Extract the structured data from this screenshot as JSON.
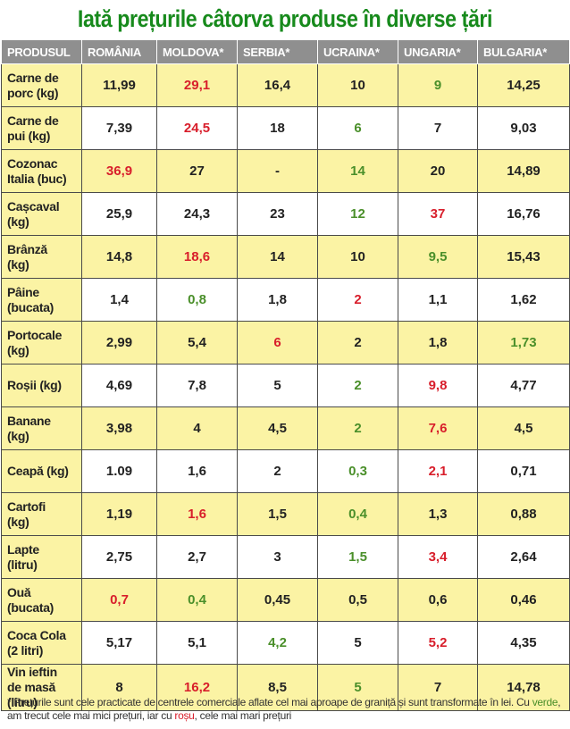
{
  "title": "Iată prețurile câtorva produse în diverse țări",
  "headers": [
    "PRODUSUL",
    "ROMÂNIA",
    "MOLDOVA*",
    "SERBIA*",
    "UCRAINA*",
    "UNGARIA*",
    "BULGARIA*"
  ],
  "rows": [
    {
      "product": [
        "Carne de",
        "porc (kg)"
      ],
      "values": [
        "11,99",
        "29,1",
        "16,4",
        "10",
        "9",
        "14,25"
      ],
      "colors": [
        "",
        "red",
        "",
        "",
        "green",
        ""
      ]
    },
    {
      "product": [
        "Carne de",
        "pui (kg)"
      ],
      "values": [
        "7,39",
        "24,5",
        "18",
        "6",
        "7",
        "9,03"
      ],
      "colors": [
        "",
        "red",
        "",
        "green",
        "",
        ""
      ]
    },
    {
      "product": [
        "Cozonac",
        "Italia (buc)"
      ],
      "values": [
        "36,9",
        "27",
        "-",
        "14",
        "20",
        "14,89"
      ],
      "colors": [
        "red",
        "",
        "",
        "green",
        "",
        ""
      ]
    },
    {
      "product": [
        "Cașcaval",
        "(kg)"
      ],
      "values": [
        "25,9",
        "24,3",
        "23",
        "12",
        "37",
        "16,76"
      ],
      "colors": [
        "",
        "",
        "",
        "green",
        "red",
        ""
      ]
    },
    {
      "product": [
        "Brânză",
        "(kg)"
      ],
      "values": [
        "14,8",
        "18,6",
        "14",
        "10",
        "9,5",
        "15,43"
      ],
      "colors": [
        "",
        "red",
        "",
        "",
        "green",
        ""
      ]
    },
    {
      "product": [
        "Pâine",
        "(bucata)"
      ],
      "values": [
        "1,4",
        "0,8",
        "1,8",
        "2",
        "1,1",
        "1,62"
      ],
      "colors": [
        "",
        "green",
        "",
        "red",
        "",
        ""
      ]
    },
    {
      "product": [
        "Portocale",
        "(kg)"
      ],
      "values": [
        "2,99",
        "5,4",
        "6",
        "2",
        "1,8",
        "1,73"
      ],
      "colors": [
        "",
        "",
        "red",
        "",
        "",
        "green"
      ]
    },
    {
      "product": [
        "Roșii (kg)"
      ],
      "values": [
        "4,69",
        "7,8",
        "5",
        "2",
        "9,8",
        "4,77"
      ],
      "colors": [
        "",
        "",
        "",
        "green",
        "red",
        ""
      ]
    },
    {
      "product": [
        "Banane",
        "(kg)"
      ],
      "values": [
        "3,98",
        "4",
        "4,5",
        "2",
        "7,6",
        "4,5"
      ],
      "colors": [
        "",
        "",
        "",
        "green",
        "red",
        ""
      ]
    },
    {
      "product": [
        "Ceapă (kg)"
      ],
      "values": [
        "1.09",
        "1,6",
        "2",
        "0,3",
        "2,1",
        "0,71"
      ],
      "colors": [
        "",
        "",
        "",
        "green",
        "red",
        ""
      ]
    },
    {
      "product": [
        "Cartofi",
        "(kg)"
      ],
      "values": [
        "1,19",
        "1,6",
        "1,5",
        "0,4",
        "1,3",
        "0,88"
      ],
      "colors": [
        "",
        "red",
        "",
        "green",
        "",
        ""
      ]
    },
    {
      "product": [
        "Lapte",
        "(litru)"
      ],
      "values": [
        "2,75",
        "2,7",
        "3",
        "1,5",
        "3,4",
        "2,64"
      ],
      "colors": [
        "",
        "",
        "",
        "green",
        "red",
        ""
      ]
    },
    {
      "product": [
        "Ouă",
        "(bucata)"
      ],
      "values": [
        "0,7",
        "0,4",
        "0,45",
        "0,5",
        "0,6",
        "0,46"
      ],
      "colors": [
        "red",
        "green",
        "",
        "",
        "",
        ""
      ]
    },
    {
      "product": [
        "Coca Cola",
        "(2 litri)"
      ],
      "values": [
        "5,17",
        "5,1",
        "4,2",
        "5",
        "5,2",
        "4,35"
      ],
      "colors": [
        "",
        "",
        "green",
        "",
        "red",
        ""
      ]
    },
    {
      "product": [
        "Vin ieftin",
        "de masă",
        "(litru)"
      ],
      "values": [
        "8",
        "16,2",
        "8,5",
        "5",
        "7",
        "14,78"
      ],
      "colors": [
        "",
        "red",
        "",
        "green",
        "",
        ""
      ]
    }
  ],
  "footnote": {
    "part1": "* Prețurile sunt cele practicate de centrele comerciale aflate cel mai aproape de graniță și sunt transformate în lei. Cu ",
    "green_word": "verde",
    "part2": ", am trecut cele mai mici prețuri, iar cu ",
    "red_word": "roșu",
    "part3": ", cele mai mari prețuri"
  },
  "colors": {
    "title": "#178a1c",
    "header_bg": "#8f8f8f",
    "stripe": "#fbf3a4",
    "green": "#4a8f2a",
    "red": "#d81e2b"
  }
}
